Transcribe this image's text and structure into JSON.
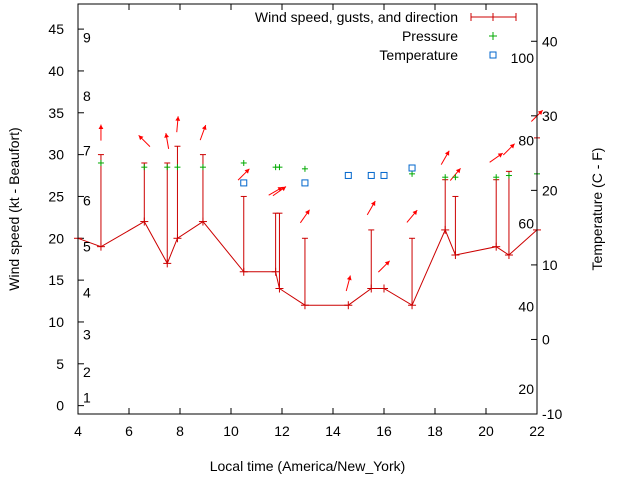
{
  "chart_data": {
    "type": "line",
    "title": "",
    "xlabel": "Local time (America/New_York)",
    "ylabel_left": "Wind speed (kt - Beaufort)",
    "ylabel_right": "Temperature (C - F)",
    "xlim": [
      4,
      22
    ],
    "ylim_left": [
      -1,
      48
    ],
    "ylim_right": [
      -10,
      45
    ],
    "x_ticks": [
      "4",
      "6",
      "8",
      "10",
      "12",
      "14",
      "16",
      "18",
      "20",
      "22"
    ],
    "y_ticks_left": [
      "0",
      "5",
      "10",
      "15",
      "20",
      "25",
      "30",
      "35",
      "40",
      "45"
    ],
    "y_ticks_right_c": [
      "-10",
      "0",
      "10",
      "20",
      "30",
      "40"
    ],
    "y_labels_right_f": [
      "20",
      "40",
      "60",
      "80",
      "100"
    ],
    "beaufort_labels": [
      "1",
      "2",
      "3",
      "4",
      "5",
      "6",
      "7",
      "8",
      "9"
    ],
    "legend": {
      "position": "top-right",
      "entries": [
        "Wind speed, gusts, and direction",
        "Pressure",
        "Temperature"
      ]
    },
    "colors": {
      "wind": "#cc0000",
      "pressure": "#00aa00",
      "temperature": "#0066cc",
      "arrow": "#ff0000"
    },
    "series": [
      {
        "name": "Wind speed, gusts, and direction",
        "points": [
          {
            "x": 4.0,
            "speed": 20,
            "gust": null,
            "dir_deg": null
          },
          {
            "x": 4.9,
            "speed": 19,
            "gust": 30,
            "dir_deg": 0
          },
          {
            "x": 6.6,
            "speed": 22,
            "gust": 29,
            "dir_deg": 315
          },
          {
            "x": 7.5,
            "speed": 17,
            "gust": 29,
            "dir_deg": 350
          },
          {
            "x": 7.9,
            "speed": 20,
            "gust": 31,
            "dir_deg": 5
          },
          {
            "x": 8.9,
            "speed": 22,
            "gust": 30,
            "dir_deg": 20
          },
          {
            "x": 10.5,
            "speed": 16,
            "gust": 25,
            "dir_deg": 45
          },
          {
            "x": 11.75,
            "speed": 16,
            "gust": 23,
            "dir_deg": 60
          },
          {
            "x": 11.9,
            "speed": 14,
            "gust": 23,
            "dir_deg": 55
          },
          {
            "x": 12.9,
            "speed": 12,
            "gust": 20,
            "dir_deg": 35
          },
          {
            "x": 14.6,
            "speed": 12,
            "gust": null,
            "dir_deg": 15
          },
          {
            "x": 15.5,
            "speed": 14,
            "gust": 21,
            "dir_deg": 30
          },
          {
            "x": 16.0,
            "speed": 14,
            "gust": null,
            "dir_deg": 45
          },
          {
            "x": 17.1,
            "speed": 12,
            "gust": 20,
            "dir_deg": 40
          },
          {
            "x": 18.4,
            "speed": 21,
            "gust": 27,
            "dir_deg": 30
          },
          {
            "x": 18.8,
            "speed": 18,
            "gust": 25,
            "dir_deg": 40
          },
          {
            "x": 20.4,
            "speed": 19,
            "gust": 27,
            "dir_deg": 55
          },
          {
            "x": 20.9,
            "speed": 18,
            "gust": 28,
            "dir_deg": 45
          },
          {
            "x": 22.0,
            "speed": 21,
            "gust": 32,
            "dir_deg": 45
          }
        ]
      },
      {
        "name": "Pressure",
        "x": [
          4.9,
          6.6,
          7.5,
          7.9,
          8.9,
          10.5,
          11.75,
          11.9,
          12.9,
          17.1,
          18.4,
          18.8,
          20.4,
          20.9,
          22.0
        ],
        "y": [
          29,
          28.5,
          28.5,
          28.5,
          28.5,
          29,
          28.5,
          28.5,
          28.3,
          27.7,
          27.3,
          27.3,
          27.3,
          27.5,
          27.7
        ]
      },
      {
        "name": "Temperature",
        "x": [
          10.5,
          12.9,
          14.6,
          15.5,
          16.0,
          17.1
        ],
        "y_c": [
          21,
          21,
          22,
          22,
          22,
          23
        ]
      }
    ]
  }
}
